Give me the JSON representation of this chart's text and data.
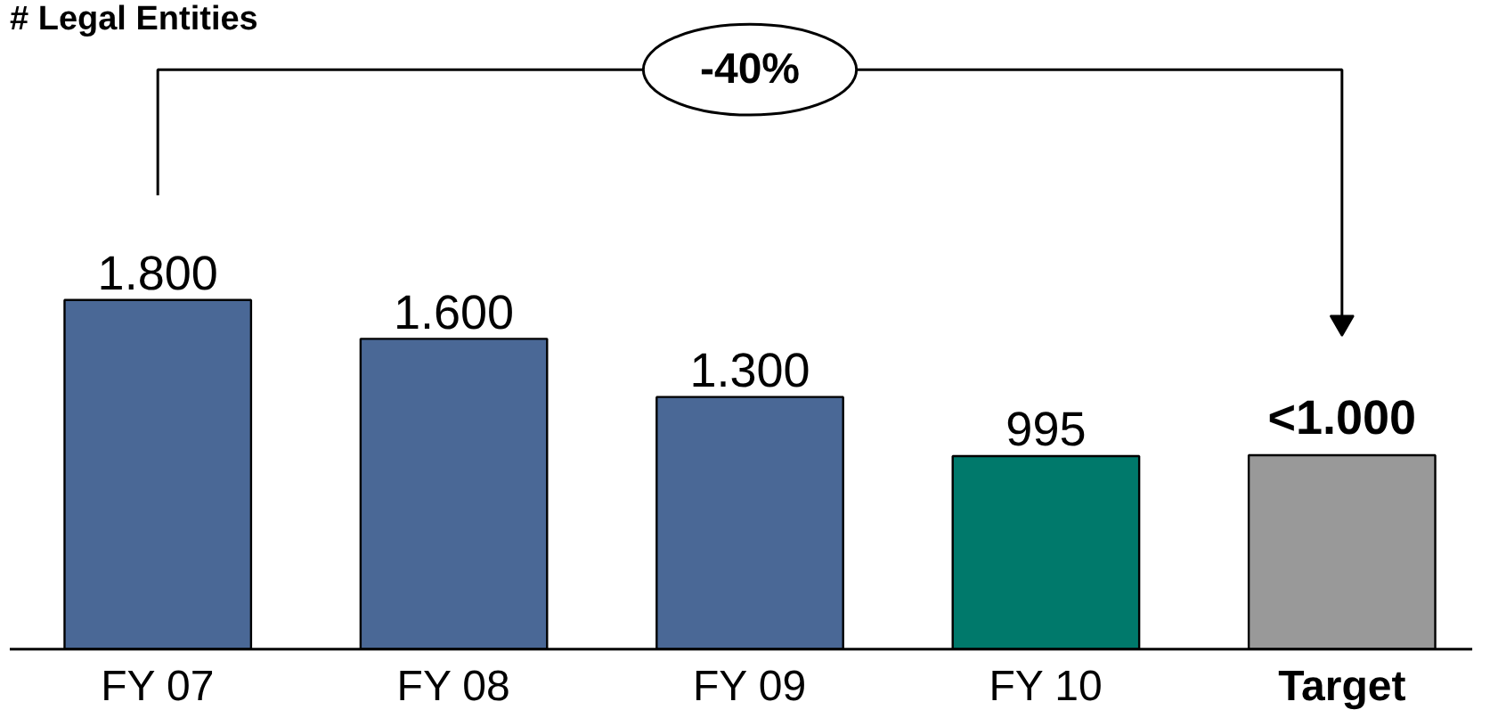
{
  "chart_data": {
    "type": "bar",
    "title": "# Legal Entities",
    "categories": [
      "FY 07",
      "FY 08",
      "FY 09",
      "FY 10",
      "Target"
    ],
    "values": [
      1800,
      1600,
      1300,
      995,
      1000
    ],
    "colors": [
      "#4a6896",
      "#4a6896",
      "#4a6896",
      "#00796b",
      "#999999"
    ],
    "value_labels": [
      "1.800",
      "1.600",
      "1.300",
      "995",
      "<1.000"
    ],
    "annotations": [
      "-40%"
    ]
  }
}
